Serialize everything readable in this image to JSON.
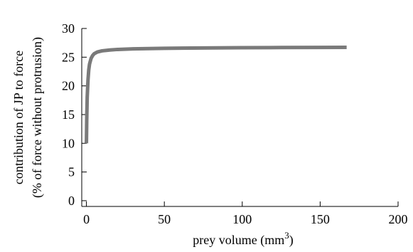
{
  "chart_data": {
    "type": "line",
    "title": "",
    "xlabel": "prey volume (mm",
    "xlabel_superscript": "3",
    "xlabel_suffix": ")",
    "ylabel_line1": "contribution of JP to force",
    "ylabel_line2": "(% of force without protrusion)",
    "xlim": [
      -3,
      200
    ],
    "ylim": [
      -1,
      30
    ],
    "x_ticks": [
      0,
      50,
      100,
      150,
      200
    ],
    "x_tick_labels": [
      "0",
      "50",
      "100",
      "150",
      "200"
    ],
    "y_ticks": [
      0,
      5,
      10,
      15,
      20,
      25,
      30
    ],
    "y_tick_labels": [
      "0",
      "5",
      "10",
      "15",
      "20",
      "25",
      "30"
    ],
    "grid": false,
    "line_color": "#7a7a7a",
    "series": [
      {
        "x": [
          0,
          0.2,
          0.5,
          1,
          1.5,
          2,
          3,
          4,
          5,
          7,
          10,
          15,
          20,
          30,
          50,
          75,
          100,
          125,
          150,
          167
        ],
        "values": [
          10,
          14,
          18,
          21,
          22.8,
          23.8,
          24.8,
          25.3,
          25.6,
          25.9,
          26.1,
          26.25,
          26.35,
          26.45,
          26.55,
          26.6,
          26.65,
          26.68,
          26.7,
          26.72
        ]
      }
    ]
  }
}
